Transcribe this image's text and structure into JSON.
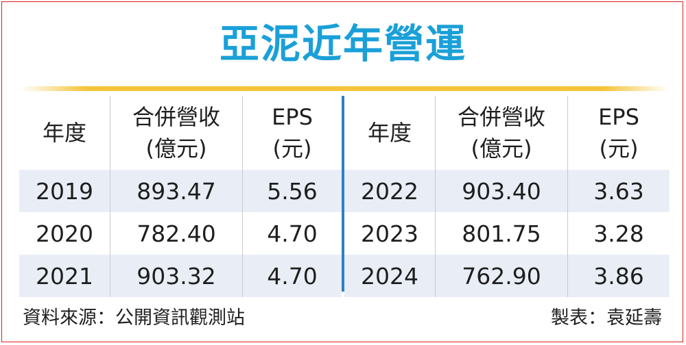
{
  "title": "亞泥近年營運",
  "headers": {
    "year": "年度",
    "revenue": [
      "合併營收",
      "(億元)"
    ],
    "eps": [
      "EPS",
      "(元)"
    ]
  },
  "colors": {
    "title": "#1aa0d8",
    "accent_line": "#f5c43a",
    "divider": "#2f7fc3",
    "row_shade": "#e9eef6",
    "frame": "#e01a1a"
  },
  "chart_data": {
    "type": "table",
    "title": "亞泥近年營運",
    "columns": [
      "年度",
      "合併營收(億元)",
      "EPS(元)"
    ],
    "left_rows": [
      [
        "2019",
        "893.47",
        "5.56"
      ],
      [
        "2020",
        "782.40",
        "4.70"
      ],
      [
        "2021",
        "903.32",
        "4.70"
      ]
    ],
    "right_rows": [
      [
        "2022",
        "903.40",
        "3.63"
      ],
      [
        "2023",
        "801.75",
        "3.28"
      ],
      [
        "2024",
        "762.90",
        "3.86"
      ]
    ]
  },
  "footer": {
    "source": "資料來源：公開資訊觀測站",
    "credit": "製表：袁延壽"
  }
}
